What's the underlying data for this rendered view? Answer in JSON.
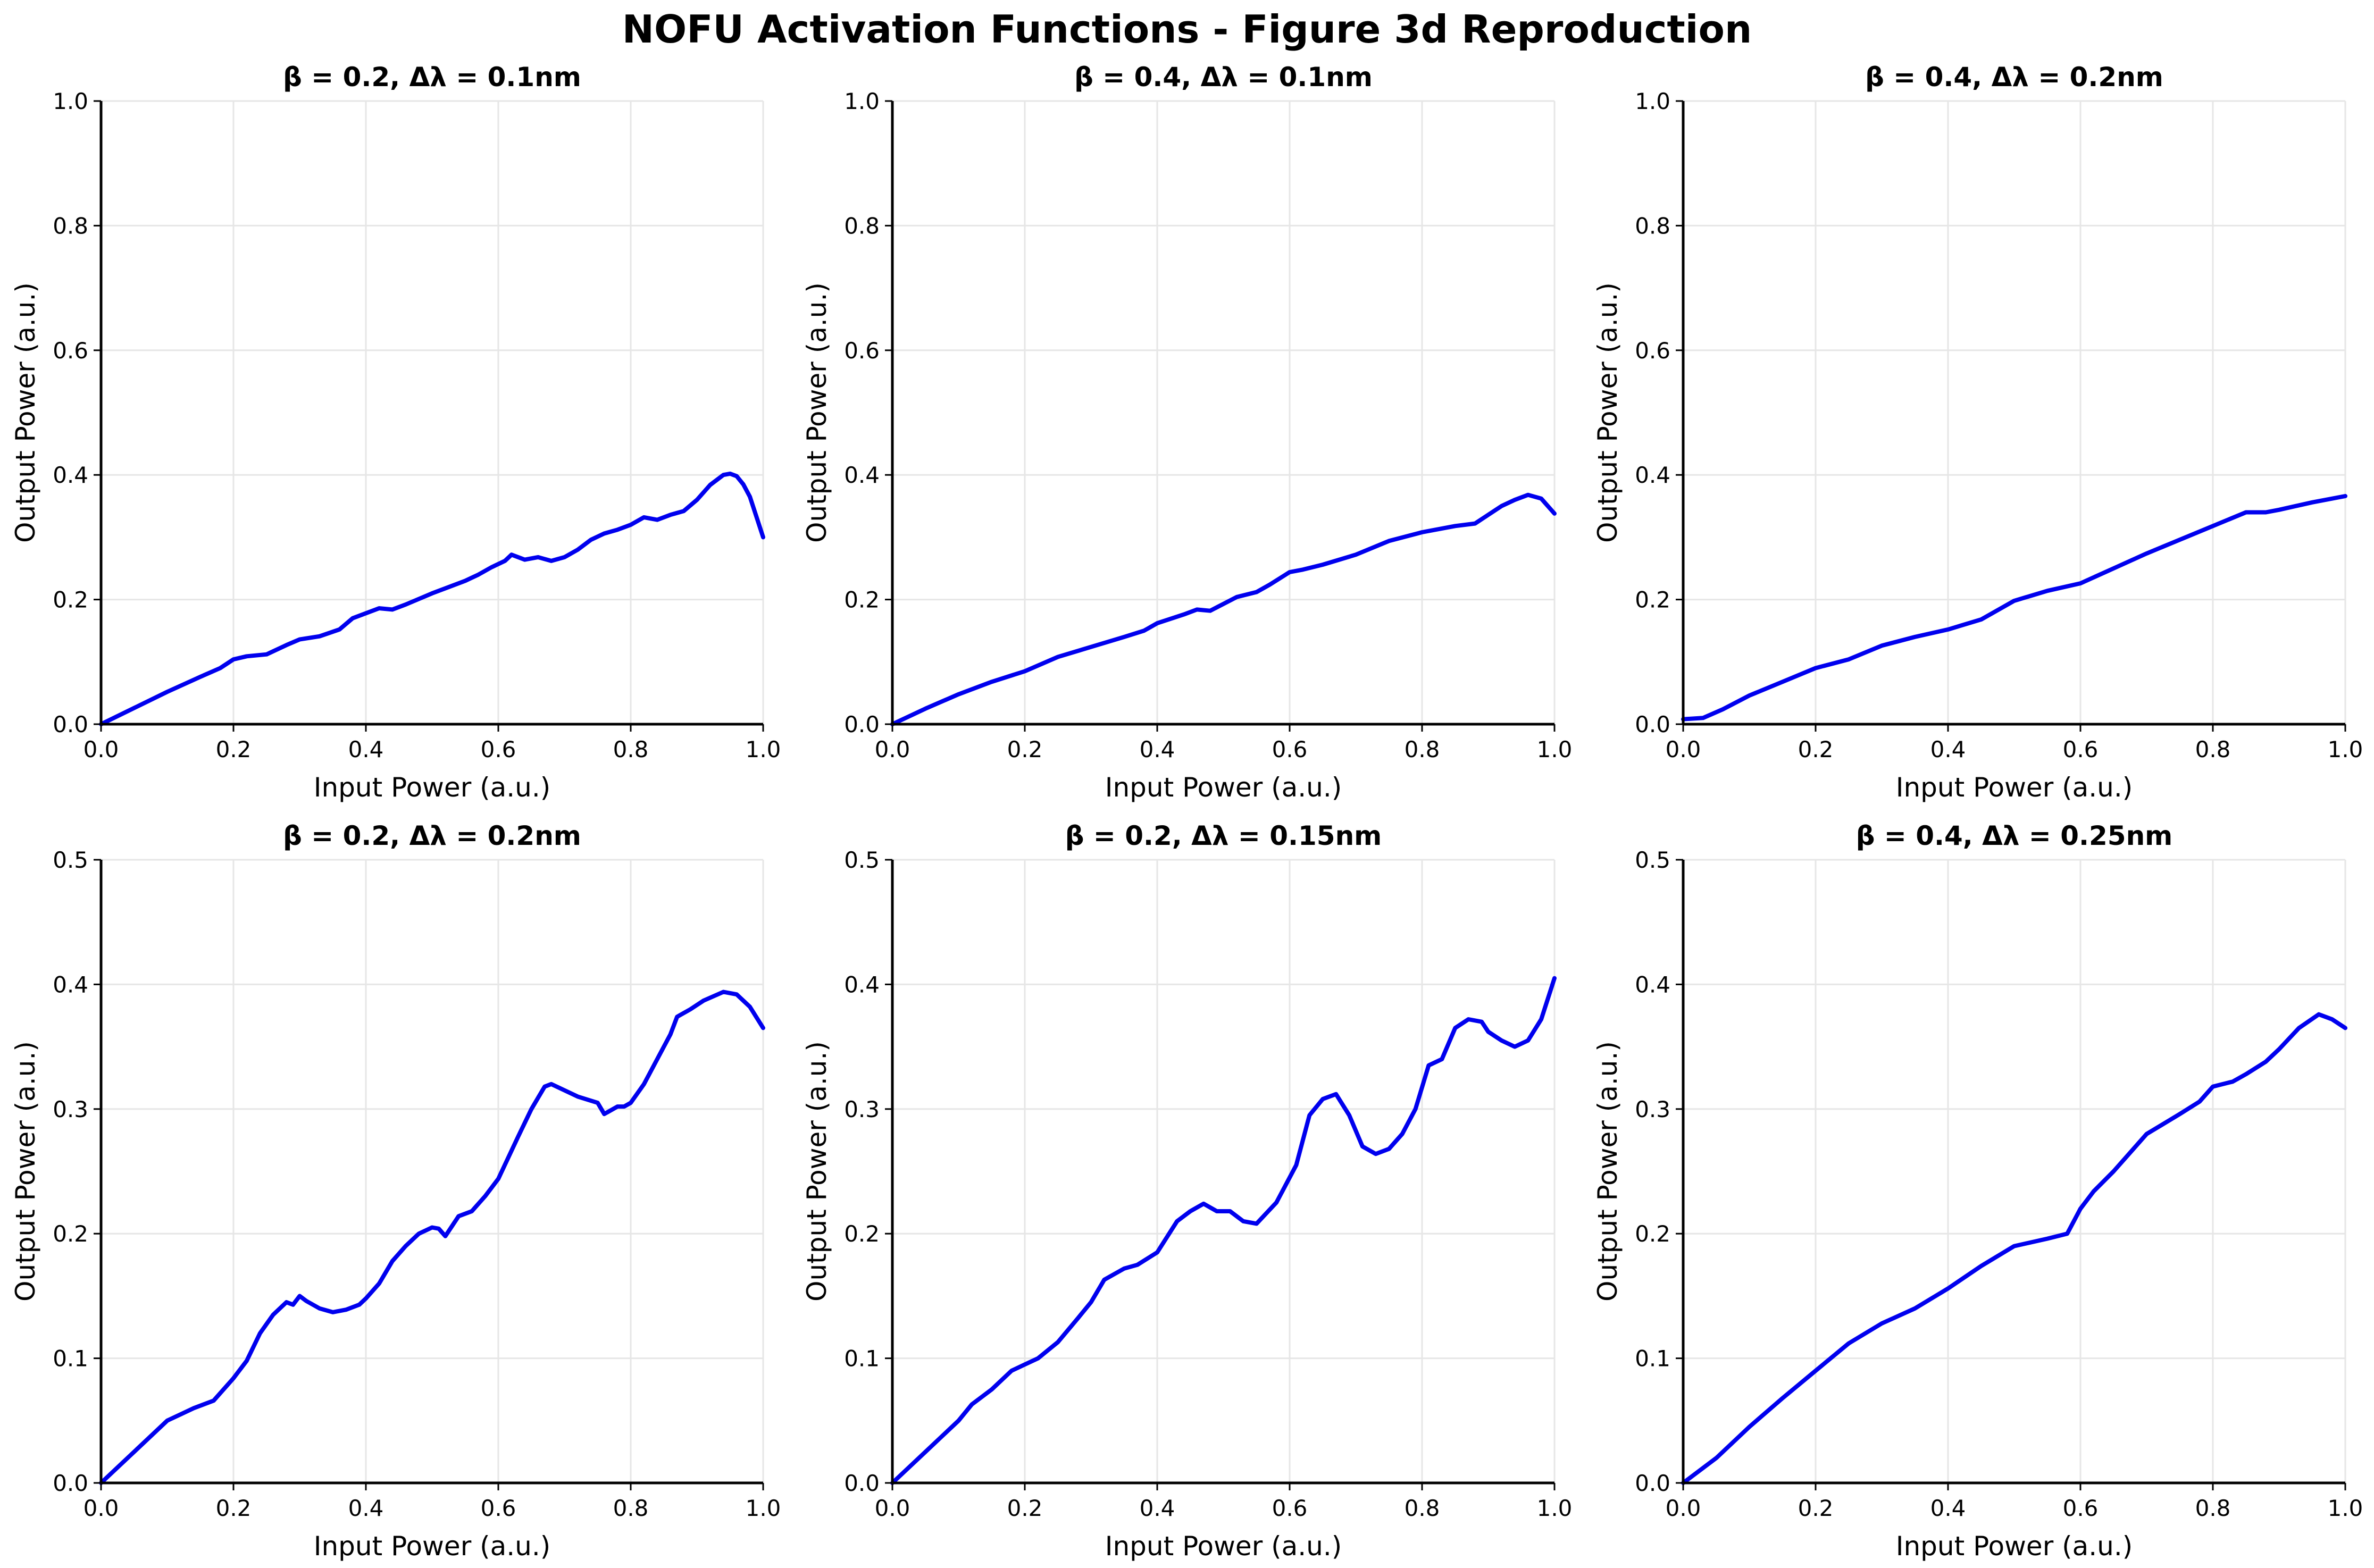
{
  "figure": {
    "title": "NOFU Activation Functions - Figure 3d Reproduction"
  },
  "chart_data": [
    {
      "type": "line",
      "title": "β = 0.2, Δλ = 0.1nm",
      "xlabel": "Input Power (a.u.)",
      "ylabel": "Output Power (a.u.)",
      "xlim": [
        0,
        1
      ],
      "ylim": [
        0,
        1
      ],
      "xticks": [
        "0.0",
        "0.2",
        "0.4",
        "0.6",
        "0.8",
        "1.0"
      ],
      "yticks": [
        "0.0",
        "0.2",
        "0.4",
        "0.6",
        "0.8",
        "1.0"
      ],
      "grid": true,
      "color": "#0000ee",
      "x": [
        0,
        0.05,
        0.1,
        0.15,
        0.18,
        0.2,
        0.22,
        0.25,
        0.28,
        0.3,
        0.33,
        0.36,
        0.38,
        0.4,
        0.42,
        0.44,
        0.46,
        0.5,
        0.52,
        0.55,
        0.57,
        0.59,
        0.61,
        0.62,
        0.64,
        0.66,
        0.68,
        0.7,
        0.72,
        0.74,
        0.76,
        0.78,
        0.8,
        0.82,
        0.84,
        0.86,
        0.88,
        0.9,
        0.92,
        0.94,
        0.95,
        0.96,
        0.97,
        0.98,
        1.0
      ],
      "y": [
        0,
        0.026,
        0.052,
        0.076,
        0.09,
        0.104,
        0.109,
        0.112,
        0.127,
        0.136,
        0.141,
        0.152,
        0.17,
        0.178,
        0.186,
        0.184,
        0.192,
        0.21,
        0.218,
        0.23,
        0.24,
        0.252,
        0.262,
        0.272,
        0.264,
        0.268,
        0.262,
        0.268,
        0.28,
        0.296,
        0.306,
        0.312,
        0.32,
        0.332,
        0.328,
        0.336,
        0.342,
        0.36,
        0.384,
        0.4,
        0.402,
        0.398,
        0.385,
        0.365,
        0.3
      ]
    },
    {
      "type": "line",
      "title": "β = 0.4, Δλ = 0.1nm",
      "xlabel": "Input Power (a.u.)",
      "ylabel": "Output Power (a.u.)",
      "xlim": [
        0,
        1
      ],
      "ylim": [
        0,
        1
      ],
      "xticks": [
        "0.0",
        "0.2",
        "0.4",
        "0.6",
        "0.8",
        "1.0"
      ],
      "yticks": [
        "0.0",
        "0.2",
        "0.4",
        "0.6",
        "0.8",
        "1.0"
      ],
      "grid": true,
      "color": "#0000ee",
      "x": [
        0,
        0.05,
        0.1,
        0.15,
        0.2,
        0.25,
        0.3,
        0.35,
        0.38,
        0.4,
        0.44,
        0.46,
        0.48,
        0.5,
        0.52,
        0.55,
        0.57,
        0.6,
        0.62,
        0.65,
        0.7,
        0.75,
        0.8,
        0.85,
        0.88,
        0.9,
        0.92,
        0.94,
        0.96,
        0.98,
        1.0
      ],
      "y": [
        0,
        0.025,
        0.048,
        0.068,
        0.085,
        0.108,
        0.124,
        0.14,
        0.15,
        0.162,
        0.176,
        0.184,
        0.182,
        0.193,
        0.204,
        0.212,
        0.224,
        0.244,
        0.248,
        0.256,
        0.272,
        0.294,
        0.308,
        0.318,
        0.322,
        0.336,
        0.35,
        0.36,
        0.368,
        0.362,
        0.338
      ]
    },
    {
      "type": "line",
      "title": "β = 0.4, Δλ = 0.2nm",
      "xlabel": "Input Power (a.u.)",
      "ylabel": "Output Power (a.u.)",
      "xlim": [
        0,
        1
      ],
      "ylim": [
        0,
        1
      ],
      "xticks": [
        "0.0",
        "0.2",
        "0.4",
        "0.6",
        "0.8",
        "1.0"
      ],
      "yticks": [
        "0.0",
        "0.2",
        "0.4",
        "0.6",
        "0.8",
        "1.0"
      ],
      "grid": true,
      "color": "#0000ee",
      "x": [
        0,
        0.03,
        0.06,
        0.1,
        0.15,
        0.2,
        0.25,
        0.3,
        0.35,
        0.4,
        0.45,
        0.5,
        0.55,
        0.6,
        0.65,
        0.7,
        0.75,
        0.8,
        0.85,
        0.88,
        0.9,
        0.95,
        1.0
      ],
      "y": [
        0.008,
        0.01,
        0.024,
        0.046,
        0.068,
        0.09,
        0.104,
        0.126,
        0.14,
        0.152,
        0.168,
        0.198,
        0.214,
        0.226,
        0.25,
        0.274,
        0.296,
        0.318,
        0.34,
        0.34,
        0.344,
        0.356,
        0.366
      ]
    },
    {
      "type": "line",
      "title": "β = 0.2, Δλ = 0.2nm",
      "xlabel": "Input Power (a.u.)",
      "ylabel": "Output Power (a.u.)",
      "xlim": [
        0,
        1
      ],
      "ylim": [
        0,
        0.5
      ],
      "xticks": [
        "0.0",
        "0.2",
        "0.4",
        "0.6",
        "0.8",
        "1.0"
      ],
      "yticks": [
        "0.0",
        "0.1",
        "0.2",
        "0.3",
        "0.4",
        "0.5"
      ],
      "grid": true,
      "color": "#0000ee",
      "x": [
        0,
        0.05,
        0.1,
        0.12,
        0.14,
        0.17,
        0.2,
        0.22,
        0.24,
        0.26,
        0.28,
        0.29,
        0.3,
        0.31,
        0.33,
        0.35,
        0.37,
        0.39,
        0.4,
        0.42,
        0.44,
        0.46,
        0.48,
        0.5,
        0.51,
        0.52,
        0.54,
        0.56,
        0.58,
        0.6,
        0.63,
        0.65,
        0.67,
        0.68,
        0.7,
        0.72,
        0.75,
        0.76,
        0.78,
        0.79,
        0.8,
        0.82,
        0.84,
        0.86,
        0.87,
        0.89,
        0.91,
        0.94,
        0.96,
        0.98,
        1.0
      ],
      "y": [
        0,
        0.025,
        0.05,
        0.055,
        0.06,
        0.066,
        0.084,
        0.098,
        0.12,
        0.135,
        0.145,
        0.143,
        0.15,
        0.146,
        0.14,
        0.137,
        0.139,
        0.143,
        0.148,
        0.16,
        0.178,
        0.19,
        0.2,
        0.205,
        0.204,
        0.198,
        0.214,
        0.218,
        0.23,
        0.244,
        0.278,
        0.3,
        0.318,
        0.32,
        0.315,
        0.31,
        0.305,
        0.296,
        0.302,
        0.302,
        0.305,
        0.32,
        0.34,
        0.36,
        0.374,
        0.38,
        0.387,
        0.394,
        0.392,
        0.382,
        0.365
      ]
    },
    {
      "type": "line",
      "title": "β = 0.2, Δλ = 0.15nm",
      "xlabel": "Input Power (a.u.)",
      "ylabel": "Output Power (a.u.)",
      "xlim": [
        0,
        1
      ],
      "ylim": [
        0,
        0.5
      ],
      "xticks": [
        "0.0",
        "0.2",
        "0.4",
        "0.6",
        "0.8",
        "1.0"
      ],
      "yticks": [
        "0.0",
        "0.1",
        "0.2",
        "0.3",
        "0.4",
        "0.5"
      ],
      "grid": true,
      "color": "#0000ee",
      "x": [
        0,
        0.05,
        0.1,
        0.12,
        0.15,
        0.18,
        0.2,
        0.22,
        0.25,
        0.28,
        0.3,
        0.32,
        0.35,
        0.37,
        0.4,
        0.43,
        0.45,
        0.47,
        0.49,
        0.51,
        0.53,
        0.55,
        0.58,
        0.61,
        0.63,
        0.65,
        0.67,
        0.69,
        0.71,
        0.73,
        0.75,
        0.77,
        0.79,
        0.81,
        0.83,
        0.85,
        0.87,
        0.89,
        0.9,
        0.92,
        0.94,
        0.96,
        0.98,
        1.0
      ],
      "y": [
        0,
        0.025,
        0.05,
        0.063,
        0.075,
        0.09,
        0.095,
        0.1,
        0.113,
        0.132,
        0.145,
        0.163,
        0.172,
        0.175,
        0.185,
        0.21,
        0.218,
        0.224,
        0.218,
        0.218,
        0.21,
        0.208,
        0.225,
        0.255,
        0.295,
        0.308,
        0.312,
        0.295,
        0.27,
        0.264,
        0.268,
        0.28,
        0.3,
        0.335,
        0.34,
        0.365,
        0.372,
        0.37,
        0.362,
        0.355,
        0.35,
        0.355,
        0.372,
        0.405
      ]
    },
    {
      "type": "line",
      "title": "β = 0.4, Δλ = 0.25nm",
      "xlabel": "Input Power (a.u.)",
      "ylabel": "Output Power (a.u.)",
      "xlim": [
        0,
        1
      ],
      "ylim": [
        0,
        0.5
      ],
      "xticks": [
        "0.0",
        "0.2",
        "0.4",
        "0.6",
        "0.8",
        "1.0"
      ],
      "yticks": [
        "0.0",
        "0.1",
        "0.2",
        "0.3",
        "0.4",
        "0.5"
      ],
      "grid": true,
      "color": "#0000ee",
      "x": [
        0,
        0.05,
        0.1,
        0.15,
        0.2,
        0.25,
        0.3,
        0.35,
        0.4,
        0.45,
        0.5,
        0.55,
        0.58,
        0.6,
        0.62,
        0.65,
        0.7,
        0.75,
        0.78,
        0.8,
        0.83,
        0.85,
        0.88,
        0.9,
        0.93,
        0.96,
        0.98,
        1.0
      ],
      "y": [
        0,
        0.02,
        0.045,
        0.068,
        0.09,
        0.112,
        0.128,
        0.14,
        0.156,
        0.174,
        0.19,
        0.196,
        0.2,
        0.22,
        0.234,
        0.25,
        0.28,
        0.296,
        0.306,
        0.318,
        0.322,
        0.328,
        0.338,
        0.348,
        0.365,
        0.376,
        0.372,
        0.365
      ]
    }
  ]
}
